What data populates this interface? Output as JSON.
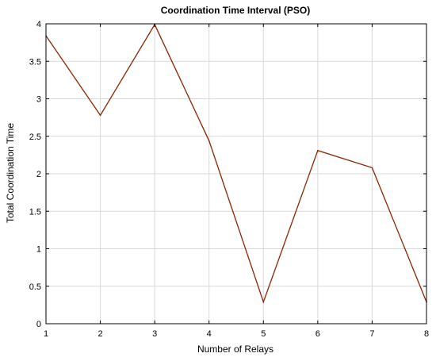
{
  "chart_data": {
    "type": "line",
    "title": "Coordination Time Interval (PSO)",
    "xlabel": "Number of Relays",
    "ylabel": "Total Coordination Time",
    "xlim": [
      1,
      8
    ],
    "ylim": [
      0,
      4
    ],
    "x_ticks": [
      "1",
      "2",
      "3",
      "4",
      "5",
      "6",
      "7",
      "8"
    ],
    "y_ticks": [
      "0",
      "0.5",
      "1",
      "1.5",
      "2",
      "2.5",
      "3",
      "3.5",
      "4"
    ],
    "grid": true,
    "legend": "none",
    "series": [
      {
        "color": "#8b2500",
        "x": [
          1,
          2,
          3,
          4,
          5,
          6,
          7,
          8
        ],
        "values": [
          3.84,
          2.78,
          3.99,
          2.44,
          0.29,
          2.31,
          2.08,
          0.29
        ]
      }
    ]
  }
}
